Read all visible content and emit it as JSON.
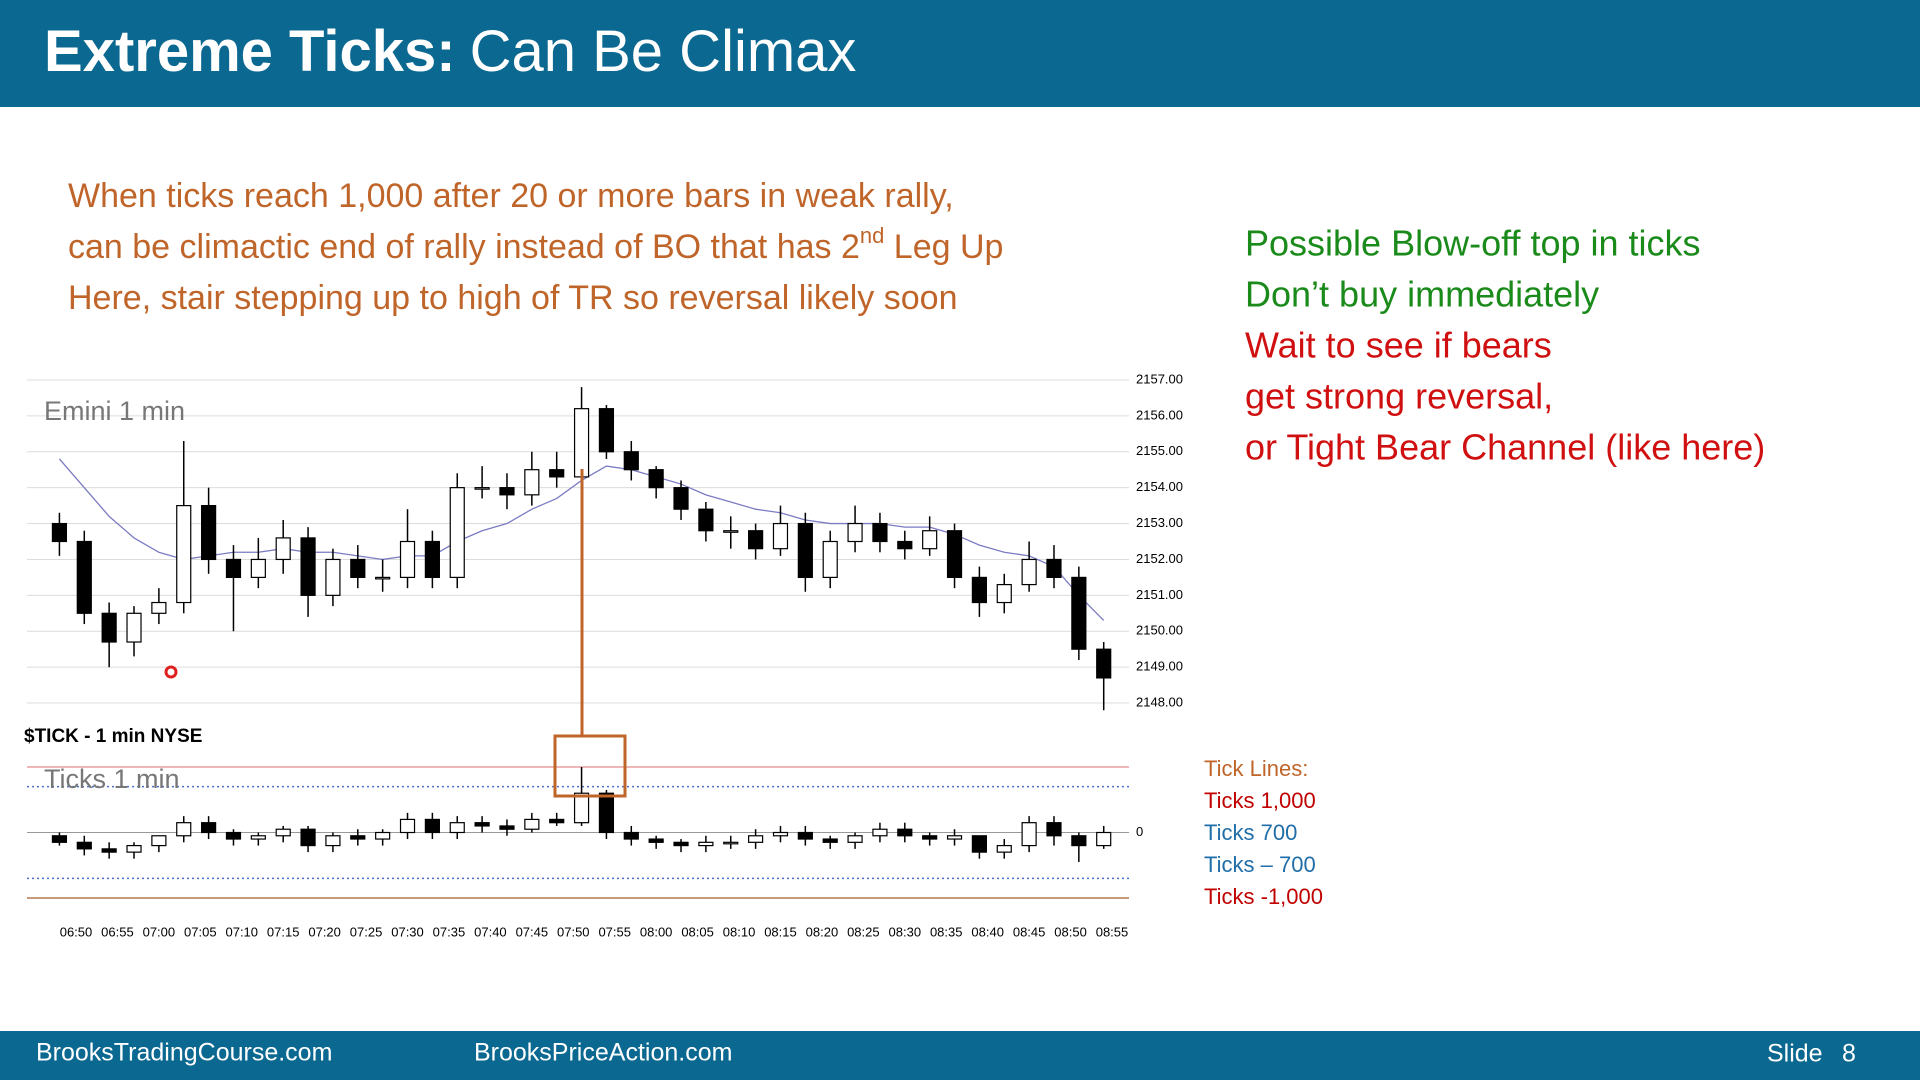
{
  "header": {
    "title_bold": "Extreme Ticks:",
    "title_rest": "Can Be Climax"
  },
  "notes": {
    "line1": "When ticks reach 1,000 after 20 or more bars in weak rally,",
    "line2": {
      "before": "can be climactic end of rally instead of BO that has 2",
      "sup": "nd",
      "after": " Leg Up"
    },
    "line3": "Here, stair stepping up to high of TR so reversal likely soon",
    "color": "#c0652a"
  },
  "commentary": [
    {
      "text": "Possible Blow-off top in ticks",
      "color": "#1a8a1a"
    },
    {
      "text": "Don’t buy immediately",
      "color": "#1a8a1a"
    },
    {
      "text": "Wait to see if bears",
      "color": "#d01010"
    },
    {
      "text": "get strong reversal,",
      "color": "#d01010"
    },
    {
      "text": "or Tight Bear Channel (like here)",
      "color": "#d01010"
    }
  ],
  "chart_data": [
    {
      "type": "candlestick",
      "title": "Emini 1 min",
      "x": [
        "06:48",
        "06:51",
        "06:54",
        "06:57",
        "07:00",
        "07:03",
        "07:06",
        "07:09",
        "07:12",
        "07:15",
        "07:18",
        "07:21",
        "07:24",
        "07:27",
        "07:30",
        "07:33",
        "07:36",
        "07:39",
        "07:42",
        "07:45",
        "07:48",
        "07:51",
        "07:54",
        "07:57",
        "08:00",
        "08:03",
        "08:06",
        "08:09",
        "08:12",
        "08:15",
        "08:18",
        "08:21",
        "08:24",
        "08:27",
        "08:30",
        "08:33",
        "08:36",
        "08:39",
        "08:42",
        "08:45",
        "08:48",
        "08:51",
        "08:54"
      ],
      "open": [
        2153,
        2152.5,
        2150.5,
        2149.7,
        2150.5,
        2150.8,
        2153.5,
        2152,
        2151.5,
        2152,
        2152.6,
        2151,
        2152,
        2151.5,
        2151.5,
        2152.5,
        2151.5,
        2154,
        2154,
        2153.8,
        2154.5,
        2154.3,
        2156.2,
        2155,
        2154.5,
        2154,
        2153.4,
        2152.8,
        2152.8,
        2152.3,
        2153,
        2151.5,
        2152.5,
        2153,
        2152.5,
        2152.3,
        2152.8,
        2151.5,
        2150.8,
        2151.3,
        2152,
        2151.5,
        2149.5
      ],
      "high": [
        2153.3,
        2152.8,
        2150.8,
        2150.7,
        2151.2,
        2155.3,
        2154,
        2152.4,
        2152.6,
        2153.1,
        2152.9,
        2152.3,
        2152.4,
        2152,
        2153.4,
        2152.8,
        2154.4,
        2154.6,
        2154.4,
        2155,
        2155,
        2156.8,
        2156.3,
        2155.3,
        2154.6,
        2154.2,
        2153.6,
        2153.2,
        2153,
        2153.5,
        2153.3,
        2152.8,
        2153.5,
        2153.3,
        2152.8,
        2153.2,
        2153,
        2151.8,
        2151.6,
        2152.5,
        2152.4,
        2151.8,
        2149.7
      ],
      "low": [
        2152.1,
        2150.2,
        2149,
        2149.3,
        2150.2,
        2150.5,
        2151.6,
        2150,
        2151.2,
        2151.6,
        2150.4,
        2150.7,
        2151.2,
        2151.1,
        2151.2,
        2151.2,
        2151.2,
        2153.7,
        2153.4,
        2153.5,
        2154,
        2154,
        2154.8,
        2154.2,
        2153.7,
        2153.1,
        2152.5,
        2152.3,
        2152,
        2152.1,
        2151.1,
        2151.2,
        2152.2,
        2152.2,
        2152,
        2152.1,
        2151.2,
        2150.4,
        2150.5,
        2151.1,
        2151.2,
        2149.2,
        2147.8
      ],
      "close": [
        2152.5,
        2150.5,
        2149.7,
        2150.5,
        2150.8,
        2153.5,
        2152,
        2151.5,
        2152,
        2152.6,
        2151,
        2152,
        2151.5,
        2151.5,
        2152.5,
        2151.5,
        2154,
        2154,
        2153.8,
        2154.5,
        2154.3,
        2156.2,
        2155,
        2154.5,
        2154,
        2153.4,
        2152.8,
        2152.8,
        2152.3,
        2153,
        2151.5,
        2152.5,
        2153,
        2152.5,
        2152.3,
        2152.8,
        2151.5,
        2150.8,
        2151.3,
        2152,
        2151.5,
        2149.5,
        2148.7
      ],
      "up_color": "#ffffff",
      "down_color": "#000000",
      "ma": {
        "color": "#7b7bc4",
        "values": [
          2154.8,
          2154,
          2153.2,
          2152.6,
          2152.2,
          2152,
          2152.1,
          2152.2,
          2152.2,
          2152.3,
          2152.2,
          2152.2,
          2152.1,
          2152,
          2152.1,
          2152.1,
          2152.5,
          2152.8,
          2153,
          2153.4,
          2153.7,
          2154.2,
          2154.6,
          2154.5,
          2154.3,
          2154.1,
          2153.8,
          2153.6,
          2153.4,
          2153.3,
          2153.1,
          2153,
          2153,
          2153,
          2152.9,
          2152.9,
          2152.7,
          2152.4,
          2152.2,
          2152.1,
          2151.8,
          2151,
          2150.3
        ]
      },
      "ylim": [
        2147.5,
        2157.5
      ],
      "yticks": [
        {
          "value": 2148,
          "label": "2148.00"
        },
        {
          "value": 2149,
          "label": "2149.00"
        },
        {
          "value": 2150,
          "label": "2150.00"
        },
        {
          "value": 2151,
          "label": "2151.00"
        },
        {
          "value": 2152,
          "label": "2152.00"
        },
        {
          "value": 2153,
          "label": "2153.00"
        },
        {
          "value": 2154,
          "label": "2154.00"
        },
        {
          "value": 2155,
          "label": "2155.00"
        },
        {
          "value": 2156,
          "label": "2156.00"
        },
        {
          "value": 2157,
          "label": "2157.00"
        }
      ],
      "grid": true
    },
    {
      "type": "candlestick",
      "title": "Ticks 1 min",
      "source": "$TICK - 1 min  NYSE",
      "x": [
        "06:48",
        "06:51",
        "06:54",
        "06:57",
        "07:00",
        "07:03",
        "07:06",
        "07:09",
        "07:12",
        "07:15",
        "07:18",
        "07:21",
        "07:24",
        "07:27",
        "07:30",
        "07:33",
        "07:36",
        "07:39",
        "07:42",
        "07:45",
        "07:48",
        "07:51",
        "07:54",
        "07:57",
        "08:00",
        "08:03",
        "08:06",
        "08:09",
        "08:12",
        "08:15",
        "08:18",
        "08:21",
        "08:24",
        "08:27",
        "08:30",
        "08:33",
        "08:36",
        "08:39",
        "08:42",
        "08:45",
        "08:48",
        "08:51",
        "08:54"
      ],
      "open": [
        -50,
        -150,
        -250,
        -300,
        -200,
        -50,
        150,
        0,
        -100,
        -50,
        50,
        -200,
        -50,
        -100,
        0,
        200,
        0,
        150,
        100,
        50,
        200,
        150,
        600,
        0,
        -100,
        -150,
        -200,
        -150,
        -150,
        -50,
        0,
        -100,
        -150,
        -50,
        50,
        -50,
        -100,
        -50,
        -300,
        -200,
        150,
        -50,
        -200
      ],
      "high": [
        0,
        -50,
        -150,
        -150,
        -50,
        250,
        250,
        50,
        0,
        100,
        100,
        0,
        50,
        50,
        300,
        300,
        250,
        250,
        200,
        300,
        300,
        1000,
        650,
        100,
        -50,
        -100,
        -50,
        -50,
        50,
        100,
        100,
        -50,
        0,
        150,
        150,
        0,
        50,
        -50,
        -100,
        250,
        250,
        0,
        100
      ],
      "low": [
        -200,
        -350,
        -400,
        -400,
        -300,
        -150,
        -100,
        -200,
        -200,
        -150,
        -300,
        -300,
        -200,
        -200,
        -100,
        -100,
        -100,
        0,
        -50,
        0,
        100,
        100,
        -100,
        -200,
        -250,
        -300,
        -300,
        -250,
        -250,
        -150,
        -200,
        -250,
        -250,
        -150,
        -150,
        -200,
        -200,
        -400,
        -400,
        -300,
        -200,
        -450,
        -250
      ],
      "close": [
        -150,
        -250,
        -300,
        -200,
        -50,
        150,
        0,
        -100,
        -50,
        50,
        -200,
        -50,
        -100,
        0,
        200,
        0,
        150,
        100,
        50,
        200,
        150,
        600,
        0,
        -100,
        -150,
        -200,
        -150,
        -150,
        -50,
        0,
        -100,
        -150,
        -50,
        50,
        -50,
        -100,
        -50,
        -300,
        -200,
        150,
        -50,
        -200,
        0
      ],
      "up_color": "#ffffff",
      "down_color": "#000000",
      "ylim": [
        -1100,
        1100
      ],
      "yticks": [
        0
      ],
      "xticks": [
        "06:50",
        "06:55",
        "07:00",
        "07:05",
        "07:10",
        "07:15",
        "07:20",
        "07:25",
        "07:30",
        "07:35",
        "07:40",
        "07:45",
        "07:50",
        "07:55",
        "08:00",
        "08:05",
        "08:10",
        "08:15",
        "08:20",
        "08:25",
        "08:30",
        "08:35",
        "08:40",
        "08:45",
        "08:50",
        "08:55"
      ],
      "reference_lines": {
        "title": "Tick Lines:",
        "title_color": "#c0652a",
        "lines": [
          {
            "label": "Ticks 1,000",
            "value": 1000,
            "color": "#c00000",
            "line_color": "#e8a0a0",
            "dashed": false
          },
          {
            "label": "Ticks 700",
            "value": 700,
            "color": "#1f6ea8",
            "line_color": "#4a6fd0",
            "dashed": true
          },
          {
            "label": "Ticks – 700",
            "value": -700,
            "color": "#1f6ea8",
            "line_color": "#4a6fd0",
            "dashed": true
          },
          {
            "label": "Ticks -1,000",
            "value": -1000,
            "color": "#c00000",
            "line_color": "#b07a50",
            "dashed": false
          }
        ]
      }
    }
  ],
  "footer": {
    "left": "BrooksTradingCourse.com",
    "center": "BrooksPriceAction.com",
    "slide_label": "Slide",
    "slide_number": 8
  }
}
